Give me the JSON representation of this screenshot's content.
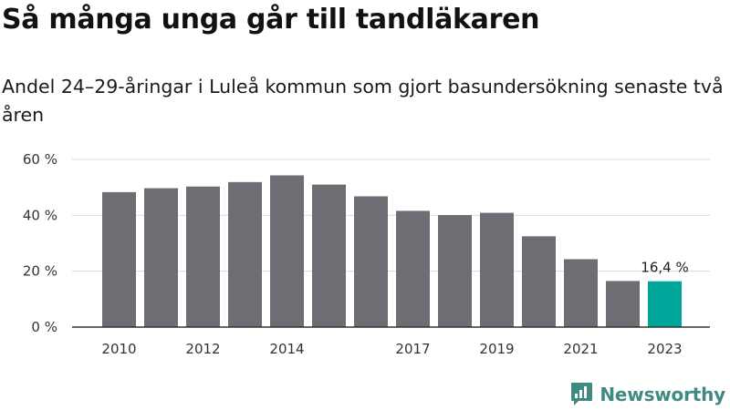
{
  "chart_data": {
    "type": "bar",
    "title": "Så många unga går till tandläkaren",
    "subtitle": "Andel 24–29-åringar i Luleå kommun som gjort basundersökning senaste två åren",
    "categories": [
      "2010",
      "2011",
      "2012",
      "2013",
      "2014",
      "2015",
      "2016",
      "2017",
      "2018",
      "2019",
      "2020",
      "2021",
      "2022",
      "2023"
    ],
    "x_tick_labels": [
      "2010",
      "",
      "2012",
      "",
      "2014",
      "",
      "",
      "2017",
      "",
      "2019",
      "",
      "2021",
      "",
      "2023"
    ],
    "values": [
      48.3,
      49.7,
      50.3,
      51.9,
      54.3,
      51.0,
      46.8,
      41.6,
      40.1,
      40.9,
      32.5,
      24.3,
      16.5,
      16.4
    ],
    "ylim": [
      0,
      60
    ],
    "y_ticks": [
      {
        "value": 0,
        "label": "0 %"
      },
      {
        "value": 20,
        "label": "20 %"
      },
      {
        "value": 40,
        "label": "40 %"
      },
      {
        "value": 60,
        "label": "60 %"
      }
    ],
    "grid": true,
    "highlight_index": 13,
    "data_labels": [
      {
        "index": 13,
        "text": "16,4 %"
      }
    ],
    "colors": {
      "bar": "#6e6d73",
      "highlight": "#00a69a",
      "grid": "#d9d9d9",
      "axis": "#333333"
    }
  },
  "brand": {
    "name": "Newsworthy",
    "icon": "newsworthy-logo-icon",
    "color": "#3f8a82"
  }
}
